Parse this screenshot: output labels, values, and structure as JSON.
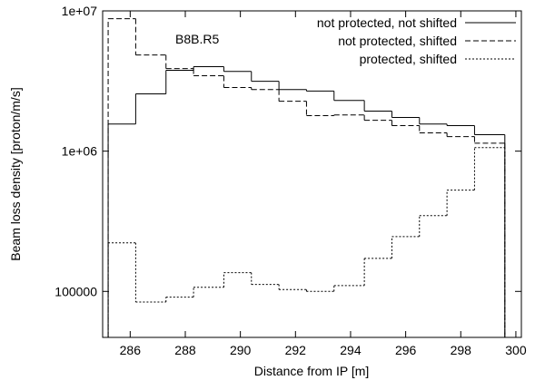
{
  "chart_data": {
    "type": "step-histogram",
    "annotation": "B8B.R5",
    "x_label": "Distance from IP [m]",
    "y_label": "Beam loss density  [proton/m/s]",
    "log_y": true,
    "xlim": [
      285,
      300.2
    ],
    "xticks": [
      286,
      288,
      290,
      292,
      294,
      296,
      298,
      300
    ],
    "ylim": [
      47000,
      10000000
    ],
    "yticks": [
      100000,
      {
        "value": 1000000,
        "label": "1e+06"
      },
      {
        "value": 10000000,
        "label": "1e+07"
      }
    ],
    "legend": "top-right",
    "bins": [
      285.2,
      286.2,
      287.3,
      288.3,
      289.4,
      290.4,
      291.4,
      292.4,
      293.4,
      294.5,
      295.5,
      296.5,
      297.5,
      298.5,
      299.6
    ],
    "series": [
      {
        "name": "not protected, not shifted",
        "color": "#000000",
        "dash": "none",
        "values": [
          1560000,
          2560000,
          3770000,
          4000000,
          3700000,
          3150000,
          2750000,
          2680000,
          2300000,
          1930000,
          1740000,
          1560000,
          1520000,
          1310000
        ]
      },
      {
        "name": "not protected, shifted",
        "color": "#000000",
        "dash": "6,3",
        "values": [
          8800000,
          4850000,
          3880000,
          3450000,
          2840000,
          2750000,
          2270000,
          1790000,
          1810000,
          1660000,
          1520000,
          1350000,
          1270000,
          1140000
        ]
      },
      {
        "name": "protected, shifted",
        "color": "#000000",
        "dash": "2,2",
        "values": [
          222000,
          84000,
          91000,
          107000,
          136000,
          112000,
          103000,
          100000,
          110000,
          172000,
          246000,
          347000,
          527000,
          1060000
        ]
      }
    ]
  }
}
